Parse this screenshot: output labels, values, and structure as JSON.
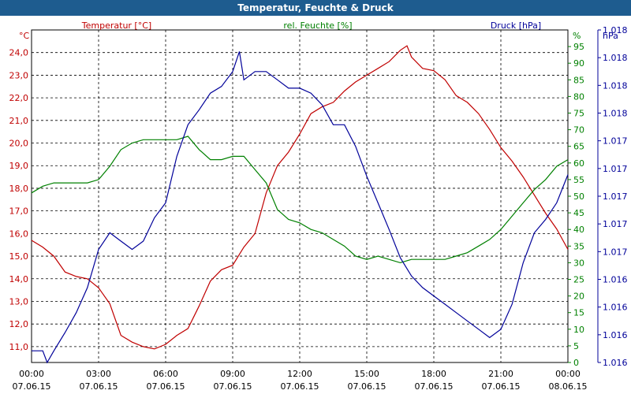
{
  "title": "Temperatur, Feuchte & Druck",
  "chart_data": {
    "type": "line",
    "title": "Temperatur, Feuchte & Druck",
    "x": {
      "ticks": [
        {
          "time": "00:00",
          "date": "07.06.15"
        },
        {
          "time": "03:00",
          "date": "07.06.15"
        },
        {
          "time": "06:00",
          "date": "07.06.15"
        },
        {
          "time": "09:00",
          "date": "07.06.15"
        },
        {
          "time": "12:00",
          "date": "07.06.15"
        },
        {
          "time": "15:00",
          "date": "07.06.15"
        },
        {
          "time": "18:00",
          "date": "07.06.15"
        },
        {
          "time": "21:00",
          "date": "07.06.15"
        },
        {
          "time": "00:00",
          "date": "08.06.15"
        }
      ]
    },
    "axes": {
      "temperature": {
        "label": "Temperatur [°C]",
        "unit": "°C",
        "color": "#c00000",
        "range": [
          10.3,
          25.0
        ],
        "ticks": [
          "11,0",
          "12,0",
          "13,0",
          "14,0",
          "15,0",
          "16,0",
          "17,0",
          "18,0",
          "19,0",
          "20,0",
          "21,0",
          "22,0",
          "23,0",
          "24,0"
        ]
      },
      "humidity": {
        "label": "rel. Feuchte [%]",
        "unit": "%",
        "color": "#008000",
        "range": [
          0,
          100
        ],
        "ticks": [
          "0",
          "5",
          "10",
          "15",
          "20",
          "25",
          "30",
          "35",
          "40",
          "45",
          "50",
          "55",
          "60",
          "65",
          "70",
          "75",
          "80",
          "85",
          "90",
          "95"
        ]
      },
      "pressure": {
        "label": "Druck [hPa]",
        "unit": "hPa",
        "color": "#000099",
        "range": [
          1016.0,
          1018.0
        ],
        "ticks": [
          "1.016",
          "1.016",
          "1.016",
          "1.016",
          "1.017",
          "1.017",
          "1.017",
          "1.017",
          "1.017",
          "1.018",
          "1.018",
          "1.018",
          "1.018"
        ]
      }
    },
    "series": [
      {
        "name": "Temperatur [°C]",
        "axis": "temperature",
        "color": "#c00000",
        "points": [
          [
            0,
            15.7
          ],
          [
            0.5,
            15.4
          ],
          [
            1,
            15.0
          ],
          [
            1.5,
            14.3
          ],
          [
            2,
            14.1
          ],
          [
            2.5,
            14.0
          ],
          [
            3,
            13.6
          ],
          [
            3.5,
            12.9
          ],
          [
            4,
            11.5
          ],
          [
            4.5,
            11.2
          ],
          [
            5,
            11.0
          ],
          [
            5.5,
            10.9
          ],
          [
            6,
            11.1
          ],
          [
            6.5,
            11.5
          ],
          [
            7,
            11.8
          ],
          [
            7.5,
            12.8
          ],
          [
            8,
            13.9
          ],
          [
            8.5,
            14.4
          ],
          [
            9,
            14.6
          ],
          [
            9.5,
            15.4
          ],
          [
            10,
            16.0
          ],
          [
            10.5,
            17.8
          ],
          [
            11,
            19.0
          ],
          [
            11.5,
            19.6
          ],
          [
            12,
            20.4
          ],
          [
            12.5,
            21.3
          ],
          [
            13,
            21.6
          ],
          [
            13.5,
            21.8
          ],
          [
            14,
            22.3
          ],
          [
            14.5,
            22.7
          ],
          [
            15,
            23.0
          ],
          [
            15.5,
            23.3
          ],
          [
            16,
            23.6
          ],
          [
            16.5,
            24.1
          ],
          [
            16.8,
            24.3
          ],
          [
            17,
            23.8
          ],
          [
            17.5,
            23.3
          ],
          [
            18,
            23.2
          ],
          [
            18.5,
            22.8
          ],
          [
            19,
            22.1
          ],
          [
            19.5,
            21.8
          ],
          [
            20,
            21.3
          ],
          [
            20.5,
            20.6
          ],
          [
            21,
            19.8
          ],
          [
            21.5,
            19.2
          ],
          [
            22,
            18.5
          ],
          [
            22.5,
            17.7
          ],
          [
            23,
            16.9
          ],
          [
            23.5,
            16.2
          ],
          [
            24,
            15.3
          ]
        ]
      },
      {
        "name": "rel. Feuchte [%]",
        "axis": "humidity",
        "color": "#008000",
        "points": [
          [
            0,
            51
          ],
          [
            0.5,
            53
          ],
          [
            1,
            54
          ],
          [
            1.5,
            54
          ],
          [
            2,
            54
          ],
          [
            2.5,
            54
          ],
          [
            3,
            55
          ],
          [
            3.5,
            59
          ],
          [
            4,
            64
          ],
          [
            4.5,
            66
          ],
          [
            5,
            67
          ],
          [
            5.5,
            67
          ],
          [
            6,
            67
          ],
          [
            6.5,
            67
          ],
          [
            7,
            68
          ],
          [
            7.5,
            64
          ],
          [
            8,
            61
          ],
          [
            8.5,
            61
          ],
          [
            9,
            62
          ],
          [
            9.5,
            62
          ],
          [
            10,
            58
          ],
          [
            10.5,
            54
          ],
          [
            11,
            46
          ],
          [
            11.5,
            43
          ],
          [
            12,
            42
          ],
          [
            12.5,
            40
          ],
          [
            13,
            39
          ],
          [
            13.5,
            37
          ],
          [
            14,
            35
          ],
          [
            14.5,
            32
          ],
          [
            15,
            31
          ],
          [
            15.5,
            32
          ],
          [
            16,
            31
          ],
          [
            16.5,
            30
          ],
          [
            17,
            31
          ],
          [
            17.5,
            31
          ],
          [
            18,
            31
          ],
          [
            18.5,
            31
          ],
          [
            19,
            32
          ],
          [
            19.5,
            33
          ],
          [
            20,
            35
          ],
          [
            20.5,
            37
          ],
          [
            21,
            40
          ],
          [
            21.5,
            44
          ],
          [
            22,
            48
          ],
          [
            22.5,
            52
          ],
          [
            23,
            55
          ],
          [
            23.5,
            59
          ],
          [
            24,
            61
          ]
        ]
      },
      {
        "name": "Druck [hPa]",
        "axis": "pressure",
        "color": "#000099",
        "points": [
          [
            0,
            1016.07
          ],
          [
            0.5,
            1016.07
          ],
          [
            0.7,
            1016.0
          ],
          [
            1,
            1016.07
          ],
          [
            1.5,
            1016.18
          ],
          [
            2,
            1016.3
          ],
          [
            2.5,
            1016.45
          ],
          [
            3,
            1016.68
          ],
          [
            3.5,
            1016.78
          ],
          [
            4,
            1016.73
          ],
          [
            4.5,
            1016.68
          ],
          [
            5,
            1016.73
          ],
          [
            5.5,
            1016.87
          ],
          [
            6,
            1016.96
          ],
          [
            6.5,
            1017.24
          ],
          [
            7,
            1017.43
          ],
          [
            7.5,
            1017.52
          ],
          [
            8,
            1017.62
          ],
          [
            8.5,
            1017.66
          ],
          [
            9,
            1017.75
          ],
          [
            9.3,
            1017.87
          ],
          [
            9.5,
            1017.7
          ],
          [
            10,
            1017.75
          ],
          [
            10.5,
            1017.75
          ],
          [
            11,
            1017.7
          ],
          [
            11.5,
            1017.65
          ],
          [
            12,
            1017.65
          ],
          [
            12.5,
            1017.62
          ],
          [
            13,
            1017.55
          ],
          [
            13.5,
            1017.43
          ],
          [
            14,
            1017.43
          ],
          [
            14.5,
            1017.3
          ],
          [
            15,
            1017.12
          ],
          [
            15.5,
            1016.96
          ],
          [
            16,
            1016.8
          ],
          [
            16.5,
            1016.63
          ],
          [
            17,
            1016.52
          ],
          [
            17.5,
            1016.45
          ],
          [
            18,
            1016.4
          ],
          [
            18.5,
            1016.35
          ],
          [
            19,
            1016.3
          ],
          [
            19.5,
            1016.25
          ],
          [
            20,
            1016.2
          ],
          [
            20.5,
            1016.15
          ],
          [
            21,
            1016.2
          ],
          [
            21.5,
            1016.35
          ],
          [
            22,
            1016.6
          ],
          [
            22.5,
            1016.78
          ],
          [
            23,
            1016.86
          ],
          [
            23.5,
            1016.96
          ],
          [
            24,
            1017.13
          ]
        ]
      }
    ]
  }
}
